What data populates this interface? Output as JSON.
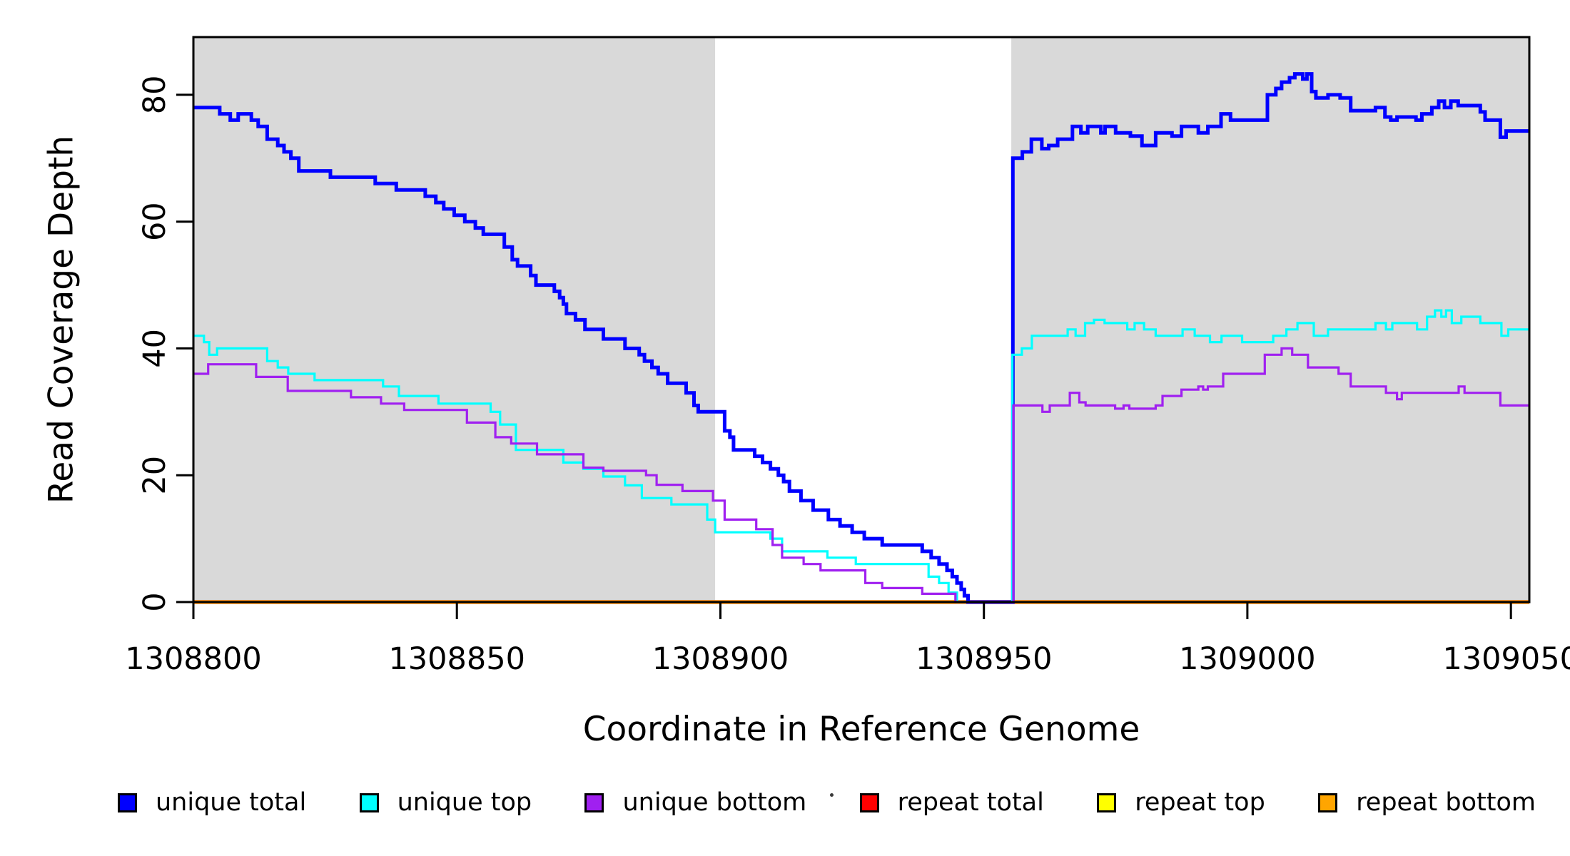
{
  "chart_data": {
    "type": "line",
    "subtype": "step",
    "title": "",
    "xlabel": "Coordinate in Reference Genome",
    "ylabel": "Read Coverage Depth",
    "xlim": [
      1308800,
      1309053.5
    ],
    "ylim": [
      0,
      89.1
    ],
    "grid": false,
    "background": "#ffffff",
    "plot_border_color": "#000000",
    "shaded_regions": [
      {
        "name": "unique-region-left",
        "from": 1308800,
        "to": 1308899,
        "color": "#d9d9d9"
      },
      {
        "name": "unique-region-right",
        "from": 1308955.2,
        "to": 1309053.5,
        "color": "#d9d9d9"
      }
    ],
    "x_ticks": [
      {
        "value": 1308800,
        "label": "1308800"
      },
      {
        "value": 1308850,
        "label": "1308850"
      },
      {
        "value": 1308900,
        "label": "1308900"
      },
      {
        "value": 1308950,
        "label": "1308950"
      },
      {
        "value": 1309000,
        "label": "1309000"
      },
      {
        "value": 1309050,
        "label": "1309050"
      }
    ],
    "y_ticks": [
      {
        "value": 0,
        "label": "0"
      },
      {
        "value": 20,
        "label": "20"
      },
      {
        "value": 40,
        "label": "40"
      },
      {
        "value": 60,
        "label": "60"
      },
      {
        "value": 80,
        "label": "80"
      }
    ],
    "series": [
      {
        "name": "unique total",
        "color": "#0000ff",
        "width": 5,
        "points": [
          [
            1308800,
            78
          ],
          [
            1308805,
            77
          ],
          [
            1308807,
            76
          ],
          [
            1308808.5,
            77
          ],
          [
            1308811,
            76
          ],
          [
            1308812.3,
            75
          ],
          [
            1308814,
            73
          ],
          [
            1308816,
            72
          ],
          [
            1308817.2,
            71
          ],
          [
            1308818.5,
            70
          ],
          [
            1308820,
            68
          ],
          [
            1308826,
            67
          ],
          [
            1308834.5,
            66
          ],
          [
            1308838.5,
            65
          ],
          [
            1308844,
            64
          ],
          [
            1308846,
            63
          ],
          [
            1308847.5,
            62
          ],
          [
            1308849.5,
            61
          ],
          [
            1308851.5,
            60
          ],
          [
            1308853.5,
            59
          ],
          [
            1308855,
            58
          ],
          [
            1308859,
            56
          ],
          [
            1308860.5,
            54
          ],
          [
            1308861.5,
            53
          ],
          [
            1308864,
            51.5
          ],
          [
            1308865,
            50
          ],
          [
            1308868.5,
            49
          ],
          [
            1308869.5,
            48
          ],
          [
            1308870.2,
            47
          ],
          [
            1308870.8,
            45.5
          ],
          [
            1308872.5,
            44.5
          ],
          [
            1308874.3,
            43
          ],
          [
            1308877.8,
            41.5
          ],
          [
            1308881.9,
            40
          ],
          [
            1308884.6,
            39
          ],
          [
            1308885.6,
            38
          ],
          [
            1308887,
            37
          ],
          [
            1308888.2,
            36
          ],
          [
            1308890,
            34.5
          ],
          [
            1308893.5,
            33
          ],
          [
            1308895,
            31
          ],
          [
            1308895.8,
            30
          ],
          [
            1308900.8,
            27
          ],
          [
            1308901.8,
            26
          ],
          [
            1308902.5,
            24
          ],
          [
            1308906.5,
            23
          ],
          [
            1308908,
            22
          ],
          [
            1308909.5,
            21
          ],
          [
            1308911,
            20
          ],
          [
            1308912,
            19
          ],
          [
            1308913.1,
            17.5
          ],
          [
            1308915.3,
            16
          ],
          [
            1308917.6,
            14.5
          ],
          [
            1308920.5,
            13
          ],
          [
            1308922.7,
            12
          ],
          [
            1308925,
            11
          ],
          [
            1308927.3,
            10
          ],
          [
            1308930.7,
            9
          ],
          [
            1308938.3,
            8
          ],
          [
            1308940,
            7
          ],
          [
            1308941.5,
            6
          ],
          [
            1308943,
            5
          ],
          [
            1308944,
            4
          ],
          [
            1308944.9,
            3
          ],
          [
            1308945.7,
            2
          ],
          [
            1308946.3,
            1
          ],
          [
            1308947,
            0
          ],
          [
            1308955.5,
            70
          ],
          [
            1308957.3,
            71
          ],
          [
            1308959,
            73
          ],
          [
            1308961,
            71.5
          ],
          [
            1308962.3,
            72
          ],
          [
            1308964,
            73
          ],
          [
            1308966.8,
            75
          ],
          [
            1308968.4,
            74
          ],
          [
            1308969.7,
            75
          ],
          [
            1308972.2,
            74
          ],
          [
            1308973,
            75
          ],
          [
            1308975,
            74
          ],
          [
            1308977.8,
            73.5
          ],
          [
            1308980,
            72
          ],
          [
            1308982.6,
            74
          ],
          [
            1308985.7,
            73.5
          ],
          [
            1308987.5,
            75
          ],
          [
            1308990.7,
            74
          ],
          [
            1308992.5,
            75
          ],
          [
            1308995,
            77
          ],
          [
            1308996.8,
            76
          ],
          [
            1309003.8,
            80
          ],
          [
            1309005.4,
            81
          ],
          [
            1309006.5,
            82
          ],
          [
            1309008,
            82.7
          ],
          [
            1309009,
            83.3
          ],
          [
            1309010.5,
            82.5
          ],
          [
            1309011.3,
            83.3
          ],
          [
            1309012.2,
            80.5
          ],
          [
            1309013,
            79.5
          ],
          [
            1309015.3,
            80
          ],
          [
            1309017.6,
            79.5
          ],
          [
            1309019.6,
            77.5
          ],
          [
            1309024.3,
            78
          ],
          [
            1309026.1,
            76.5
          ],
          [
            1309027.2,
            76
          ],
          [
            1309028.4,
            76.5
          ],
          [
            1309032,
            76
          ],
          [
            1309033.1,
            77
          ],
          [
            1309035,
            78
          ],
          [
            1309036.3,
            79
          ],
          [
            1309037.4,
            78
          ],
          [
            1309038.6,
            79
          ],
          [
            1309040,
            78.3
          ],
          [
            1309044.2,
            77.3
          ],
          [
            1309045.1,
            76
          ],
          [
            1309048,
            73.3
          ],
          [
            1309049.1,
            74.3
          ]
        ]
      },
      {
        "name": "unique top",
        "color": "#00ffff",
        "width": 3.2,
        "points": [
          [
            1308800,
            42
          ],
          [
            1308802,
            41
          ],
          [
            1308803,
            39
          ],
          [
            1308804.5,
            40
          ],
          [
            1308814,
            38
          ],
          [
            1308816,
            37
          ],
          [
            1308818,
            36
          ],
          [
            1308823,
            35
          ],
          [
            1308836,
            34
          ],
          [
            1308839,
            32.5
          ],
          [
            1308846.5,
            31.3
          ],
          [
            1308856.4,
            30
          ],
          [
            1308858.2,
            28
          ],
          [
            1308861.2,
            24
          ],
          [
            1308870.2,
            22
          ],
          [
            1308874,
            21
          ],
          [
            1308877.8,
            19.8
          ],
          [
            1308881.9,
            18.4
          ],
          [
            1308885.1,
            16.4
          ],
          [
            1308890.7,
            15.4
          ],
          [
            1308897.5,
            13
          ],
          [
            1308899,
            11
          ],
          [
            1308909.5,
            10
          ],
          [
            1308911.7,
            8
          ],
          [
            1308920.3,
            7
          ],
          [
            1308925.7,
            6
          ],
          [
            1308939.5,
            4
          ],
          [
            1308941.5,
            3
          ],
          [
            1308943.3,
            1.5
          ],
          [
            1308944.9,
            0
          ],
          [
            1308955.4,
            39
          ],
          [
            1308957.2,
            40
          ],
          [
            1308959.1,
            42
          ],
          [
            1308965.9,
            43
          ],
          [
            1308967.4,
            42
          ],
          [
            1308969.2,
            44
          ],
          [
            1308970.9,
            44.5
          ],
          [
            1308972.9,
            44
          ],
          [
            1308977.2,
            43
          ],
          [
            1308978.6,
            44
          ],
          [
            1308980.4,
            43
          ],
          [
            1308982.6,
            42
          ],
          [
            1308987.7,
            43
          ],
          [
            1308990,
            42
          ],
          [
            1308992.9,
            41
          ],
          [
            1308995.1,
            42
          ],
          [
            1308999,
            41
          ],
          [
            1309004.9,
            42
          ],
          [
            1309007.4,
            43
          ],
          [
            1309009.5,
            44
          ],
          [
            1309012.6,
            42
          ],
          [
            1309015.3,
            43
          ],
          [
            1309024.3,
            44
          ],
          [
            1309026.3,
            43
          ],
          [
            1309027.5,
            44
          ],
          [
            1309032.2,
            43
          ],
          [
            1309034.1,
            45
          ],
          [
            1309035.6,
            46
          ],
          [
            1309036.8,
            45
          ],
          [
            1309037.7,
            46
          ],
          [
            1309038.8,
            44
          ],
          [
            1309040.6,
            45
          ],
          [
            1309044.2,
            44
          ],
          [
            1309048.2,
            42
          ],
          [
            1309049.5,
            43
          ]
        ]
      },
      {
        "name": "unique bottom",
        "color": "#a020f0",
        "width": 3.2,
        "points": [
          [
            1308800,
            36
          ],
          [
            1308802.8,
            37.5
          ],
          [
            1308811.9,
            35.5
          ],
          [
            1308817.9,
            33.3
          ],
          [
            1308829.9,
            32.3
          ],
          [
            1308835.6,
            31.3
          ],
          [
            1308840,
            30.3
          ],
          [
            1308851.9,
            28.3
          ],
          [
            1308857.3,
            26
          ],
          [
            1308860.3,
            25
          ],
          [
            1308865.2,
            23.3
          ],
          [
            1308874,
            21.2
          ],
          [
            1308877.8,
            20.7
          ],
          [
            1308885.9,
            20
          ],
          [
            1308887.9,
            18.5
          ],
          [
            1308892.8,
            17.5
          ],
          [
            1308898.6,
            16
          ],
          [
            1308900.8,
            13
          ],
          [
            1308906.8,
            11.5
          ],
          [
            1308909.9,
            9
          ],
          [
            1308911.7,
            7
          ],
          [
            1308915.8,
            6
          ],
          [
            1308919,
            5
          ],
          [
            1308927.5,
            3
          ],
          [
            1308930.7,
            2.2
          ],
          [
            1308938.3,
            1.3
          ],
          [
            1308944.6,
            0
          ],
          [
            1308955.6,
            31
          ],
          [
            1308961.1,
            30
          ],
          [
            1308962.5,
            31
          ],
          [
            1308966.3,
            33
          ],
          [
            1308968.1,
            31.5
          ],
          [
            1308969.3,
            31
          ],
          [
            1308974.9,
            30.5
          ],
          [
            1308976.5,
            31
          ],
          [
            1308977.6,
            30.5
          ],
          [
            1308982.6,
            31
          ],
          [
            1308983.9,
            32.5
          ],
          [
            1308987.5,
            33.5
          ],
          [
            1308990.7,
            34
          ],
          [
            1308991.6,
            33.5
          ],
          [
            1308992.5,
            34
          ],
          [
            1308995.4,
            36
          ],
          [
            1309003.3,
            39
          ],
          [
            1309006.5,
            40
          ],
          [
            1309008.5,
            39
          ],
          [
            1309011.5,
            37
          ],
          [
            1309017.3,
            36
          ],
          [
            1309019.6,
            34
          ],
          [
            1309026.3,
            33
          ],
          [
            1309028.4,
            32
          ],
          [
            1309029.3,
            33
          ],
          [
            1309040.1,
            34
          ],
          [
            1309041.2,
            33
          ],
          [
            1309048,
            31
          ]
        ]
      },
      {
        "name": "repeat total",
        "color": "#ff0000",
        "width": 5.5,
        "points": [
          [
            1308800,
            0
          ]
        ]
      },
      {
        "name": "repeat top",
        "color": "#ffff00",
        "width": 4.8,
        "points": [
          [
            1308800,
            0
          ]
        ]
      },
      {
        "name": "repeat bottom",
        "color": "#ffa500",
        "width": 4.2,
        "points": [
          [
            1308800,
            0
          ]
        ]
      }
    ],
    "legend": {
      "position": "bottom",
      "items": [
        {
          "label": "unique total",
          "color": "#0000ff"
        },
        {
          "label": "unique top",
          "color": "#00ffff"
        },
        {
          "label": "unique bottom",
          "color": "#a020f0"
        },
        {
          "label": "repeat total",
          "color": "#ff0000"
        },
        {
          "label": "repeat top",
          "color": "#ffff00"
        },
        {
          "label": "repeat bottom",
          "color": "#ffa500"
        }
      ]
    }
  }
}
